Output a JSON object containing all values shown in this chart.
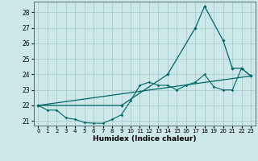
{
  "title": "",
  "xlabel": "Humidex (Indice chaleur)",
  "ylabel": "",
  "bg_color": "#cce8e8",
  "grid_color": "#aacccc",
  "line_color": "#006666",
  "xlim": [
    -0.5,
    23.5
  ],
  "ylim": [
    20.7,
    28.7
  ],
  "yticks": [
    21,
    22,
    23,
    24,
    25,
    26,
    27,
    28
  ],
  "xticks": [
    0,
    1,
    2,
    3,
    4,
    5,
    6,
    7,
    8,
    9,
    10,
    11,
    12,
    13,
    14,
    15,
    16,
    17,
    18,
    19,
    20,
    21,
    22,
    23
  ],
  "line1_x": [
    0,
    1,
    2,
    3,
    4,
    5,
    6,
    7,
    8,
    9,
    10,
    11,
    12,
    13,
    14,
    15,
    16,
    17,
    18,
    19,
    20,
    21,
    22,
    23
  ],
  "line1_y": [
    22.0,
    21.7,
    21.7,
    21.2,
    21.1,
    20.9,
    20.85,
    20.85,
    21.1,
    21.4,
    22.3,
    23.3,
    23.5,
    23.3,
    23.3,
    23.0,
    23.3,
    23.5,
    24.0,
    23.2,
    23.0,
    23.0,
    24.4,
    23.9
  ],
  "line2_x": [
    0,
    9,
    14,
    17,
    18,
    20,
    21,
    22,
    23
  ],
  "line2_y": [
    22.0,
    22.0,
    24.0,
    27.0,
    28.4,
    26.2,
    24.4,
    24.4,
    23.9
  ],
  "line3_x": [
    0,
    23
  ],
  "line3_y": [
    22.0,
    23.9
  ]
}
